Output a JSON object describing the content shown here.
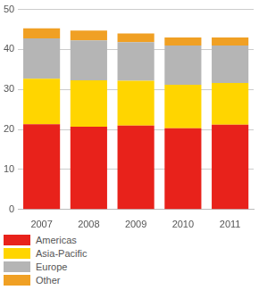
{
  "chart_data": {
    "type": "bar",
    "stacked": true,
    "categories": [
      "2007",
      "2008",
      "2009",
      "2010",
      "2011"
    ],
    "series": [
      {
        "name": "Americas",
        "color": "#e8221b",
        "values": [
          21.3,
          20.7,
          21.0,
          20.3,
          21.2
        ]
      },
      {
        "name": "Asia-Pacific",
        "color": "#ffd500",
        "values": [
          11.4,
          11.6,
          11.2,
          10.9,
          10.4
        ]
      },
      {
        "name": "Europe",
        "color": "#b5b5b5",
        "values": [
          10.1,
          10.0,
          9.6,
          9.8,
          9.4
        ]
      },
      {
        "name": "Other",
        "color": "#f0a024",
        "values": [
          2.5,
          2.4,
          2.2,
          2.0,
          2.0
        ]
      }
    ],
    "ylim": [
      0,
      50
    ],
    "yticks": [
      0,
      10,
      20,
      30,
      40,
      50
    ],
    "grid": true,
    "legend": "bottom"
  }
}
